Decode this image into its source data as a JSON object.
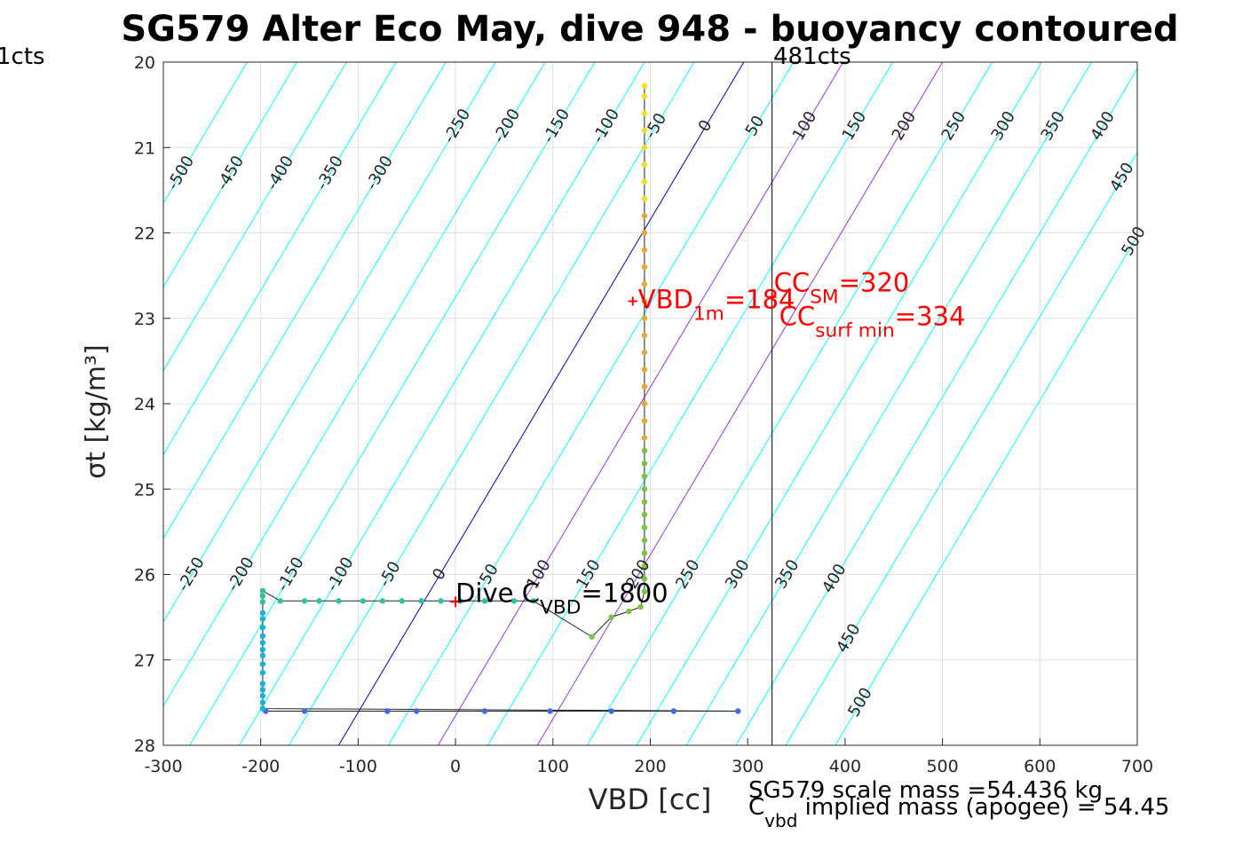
{
  "chart_data": {
    "type": "scatter",
    "title": "SG579 Alter Eco May, dive 948 - buoyancy contoured",
    "xlabel": "VBD [cc]",
    "ylabel": "σt [kg/m³]",
    "xlim": [
      -300,
      700
    ],
    "ylim": [
      20,
      28
    ],
    "y_reversed": true,
    "grid": true,
    "xticks": [
      "-300",
      "-200",
      "-100",
      "0",
      "100",
      "200",
      "300",
      "400",
      "500",
      "600",
      "700"
    ],
    "yticks": [
      "20",
      "21",
      "22",
      "23",
      "24",
      "25",
      "26",
      "27",
      "28"
    ],
    "buoyancy_contours": [
      -500,
      -450,
      -400,
      -350,
      -300,
      -250,
      -200,
      -150,
      -100,
      -50,
      0,
      50,
      100,
      150,
      200,
      250,
      300,
      350,
      400,
      450,
      500
    ],
    "contour_labels_upper": [
      "-500",
      "-450",
      "-400",
      "-350",
      "-300",
      "-250",
      "-200",
      "-150",
      "-100",
      "-50",
      "0",
      "50",
      "100",
      "150",
      "200",
      "250",
      "300",
      "350",
      "400",
      "450",
      "500"
    ],
    "contour_labels_lower": [
      "-250",
      "-200",
      "-150",
      "-100",
      "-50",
      "0",
      "50",
      "100",
      "150",
      "200",
      "250",
      "300",
      "350",
      "400",
      "450",
      "500"
    ],
    "colors": {
      "contour": "#00ffff",
      "zero_contour": "#0000cc",
      "highlight_contour": "#9b30ff",
      "marker": "#ff0000",
      "grid": "#e0e0e0"
    },
    "vertical_line": {
      "x": 325,
      "label": "481cts"
    },
    "left_clip_label": "1cts",
    "annotations": {
      "vbd_1m": {
        "x": 182,
        "y": 22.8,
        "text": "VBD",
        "sub": "1m",
        "value": "=184"
      },
      "cc_sm": {
        "x": 325,
        "y": 22.75,
        "text": "CC",
        "sub": "SM",
        "value": "=320"
      },
      "cc_surf_min": {
        "x": 325,
        "y": 22.85,
        "text": "CC",
        "sub": "surf min",
        "value": "=334"
      },
      "dive_c_vbd": {
        "x": 0,
        "y": 26.32,
        "text": "Dive C",
        "sub": "VBD",
        "value": "=1800"
      }
    },
    "footer_line1": "SG579 scale mass =54.436 kg",
    "footer_line2_main": "C",
    "footer_line2_sub": "vbd",
    "footer_line2_rest": " implied mass (apogee) = 54.45",
    "series": [
      {
        "segment": "deep",
        "color": "#4169e1",
        "points": [
          [
            -195,
            27.6
          ],
          [
            -155,
            27.6
          ],
          [
            -70,
            27.6
          ],
          [
            -40,
            27.6
          ],
          [
            30,
            27.6
          ],
          [
            97,
            27.6
          ],
          [
            160,
            27.6
          ],
          [
            224,
            27.6
          ],
          [
            290,
            27.6
          ]
        ]
      },
      {
        "segment": "apogee",
        "color": "#1ab2d6",
        "points": [
          [
            -198,
            27.57
          ],
          [
            -198,
            27.5
          ],
          [
            -198,
            27.42
          ],
          [
            -198,
            27.35
          ],
          [
            -198,
            27.28
          ],
          [
            -198,
            27.15
          ],
          [
            -198,
            27.05
          ],
          [
            -198,
            26.95
          ],
          [
            -198,
            26.88
          ],
          [
            -198,
            26.8
          ],
          [
            -198,
            26.72
          ],
          [
            -198,
            26.62
          ],
          [
            -198,
            26.52
          ],
          [
            -198,
            26.45
          ]
        ]
      },
      {
        "segment": "transition",
        "color": "#2ec2a0",
        "points": [
          [
            -198,
            26.32
          ],
          [
            -198,
            26.25
          ],
          [
            -198,
            26.19
          ],
          [
            -180,
            26.31
          ],
          [
            -155,
            26.31
          ],
          [
            -140,
            26.31
          ],
          [
            -120,
            26.31
          ],
          [
            -95,
            26.31
          ],
          [
            -75,
            26.31
          ],
          [
            -55,
            26.31
          ],
          [
            -35,
            26.31
          ],
          [
            -15,
            26.31
          ],
          [
            5,
            26.31
          ],
          [
            30,
            26.31
          ],
          [
            60,
            26.31
          ],
          [
            80,
            26.31
          ]
        ]
      },
      {
        "segment": "climb",
        "color": "#7cc242",
        "points": [
          [
            140,
            26.73
          ],
          [
            160,
            26.5
          ],
          [
            178,
            26.43
          ],
          [
            190,
            26.38
          ],
          [
            194,
            26.2
          ],
          [
            194,
            26.05
          ],
          [
            194,
            25.9
          ],
          [
            194,
            25.75
          ],
          [
            194,
            25.6
          ],
          [
            194,
            25.45
          ],
          [
            194,
            25.3
          ],
          [
            194,
            25.15
          ],
          [
            194,
            25.0
          ],
          [
            194,
            24.85
          ],
          [
            194,
            24.7
          ],
          [
            194,
            24.55
          ]
        ]
      },
      {
        "segment": "upper",
        "color": "#e6a834",
        "points": [
          [
            194,
            24.4
          ],
          [
            194,
            24.2
          ],
          [
            194,
            24.0
          ],
          [
            194,
            23.8
          ],
          [
            194,
            23.6
          ],
          [
            194,
            23.4
          ],
          [
            194,
            23.2
          ],
          [
            194,
            23.0
          ],
          [
            194,
            22.8
          ],
          [
            194,
            22.6
          ],
          [
            194,
            22.4
          ],
          [
            194,
            22.2
          ],
          [
            194,
            22.0
          ],
          [
            194,
            21.8
          ]
        ]
      },
      {
        "segment": "surface",
        "color": "#f0e020",
        "points": [
          [
            194,
            21.6
          ],
          [
            194,
            21.4
          ],
          [
            194,
            21.2
          ],
          [
            194,
            21.0
          ],
          [
            194,
            20.8
          ],
          [
            194,
            20.6
          ],
          [
            194,
            20.4
          ],
          [
            194,
            20.28
          ]
        ]
      }
    ]
  }
}
